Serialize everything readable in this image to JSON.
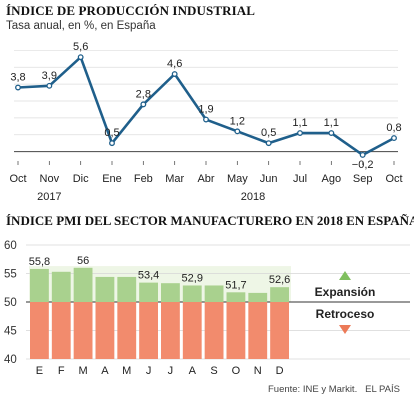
{
  "header": {
    "title": "ÍNDICE DE PRODUCCIÓN INDUSTRIAL",
    "subtitle": "Tasa anual, en %, en España"
  },
  "chart2_header": {
    "title": "ÍNDICE PMI DEL SECTOR MANUFACTURERO EN 2018 EN ESPAÑA"
  },
  "legend": {
    "expansion": "Expansión",
    "retroceso": "Retroceso"
  },
  "footer": {
    "source": "Fuente: INE y Markit.",
    "brand": "EL PAÍS"
  },
  "colors": {
    "line": "#1f5f8b",
    "expansion": "#a9d18e",
    "retroceso": "#f28b6d",
    "grid": "#cccccc"
  },
  "chart_data": [
    {
      "type": "line",
      "title": "ÍNDICE DE PRODUCCIÓN INDUSTRIAL",
      "subtitle": "Tasa anual, en %, en España",
      "categories": [
        "Oct",
        "Nov",
        "Dic",
        "Ene",
        "Feb",
        "Mar",
        "Abr",
        "May",
        "Jun",
        "Jul",
        "Ago",
        "Sep",
        "Oct"
      ],
      "year_labels": [
        "2017",
        "2018"
      ],
      "values": [
        3.8,
        3.9,
        5.6,
        0.5,
        2.8,
        4.6,
        1.9,
        1.2,
        0.5,
        1.1,
        1.1,
        -0.2,
        0.8
      ],
      "value_labels": [
        "3,8",
        "3,9",
        "5,6",
        "0,5",
        "2,8",
        "4,6",
        "1,9",
        "1,2",
        "0,5",
        "1,1",
        "1,1",
        "−0,2",
        "0,8"
      ],
      "ylim": [
        -0.5,
        6.5
      ],
      "grid": "horizontal"
    },
    {
      "type": "bar",
      "title": "ÍNDICE PMI DEL SECTOR MANUFACTURERO EN 2018 EN ESPAÑA",
      "categories": [
        "E",
        "F",
        "M",
        "A",
        "M",
        "J",
        "J",
        "A",
        "S",
        "O",
        "N",
        "D"
      ],
      "values": [
        55.8,
        55.3,
        56.0,
        54.4,
        54.4,
        53.4,
        53.3,
        52.9,
        52.9,
        51.7,
        51.6,
        52.6
      ],
      "value_labels": [
        "55,8",
        "",
        "56",
        "",
        "",
        "53,4",
        "",
        "52,9",
        "",
        "51,7",
        "",
        "52,6"
      ],
      "baseline": 50,
      "ylim": [
        40,
        60
      ],
      "yticks": [
        40,
        45,
        50,
        55,
        60
      ],
      "grid": "horizontal"
    }
  ]
}
